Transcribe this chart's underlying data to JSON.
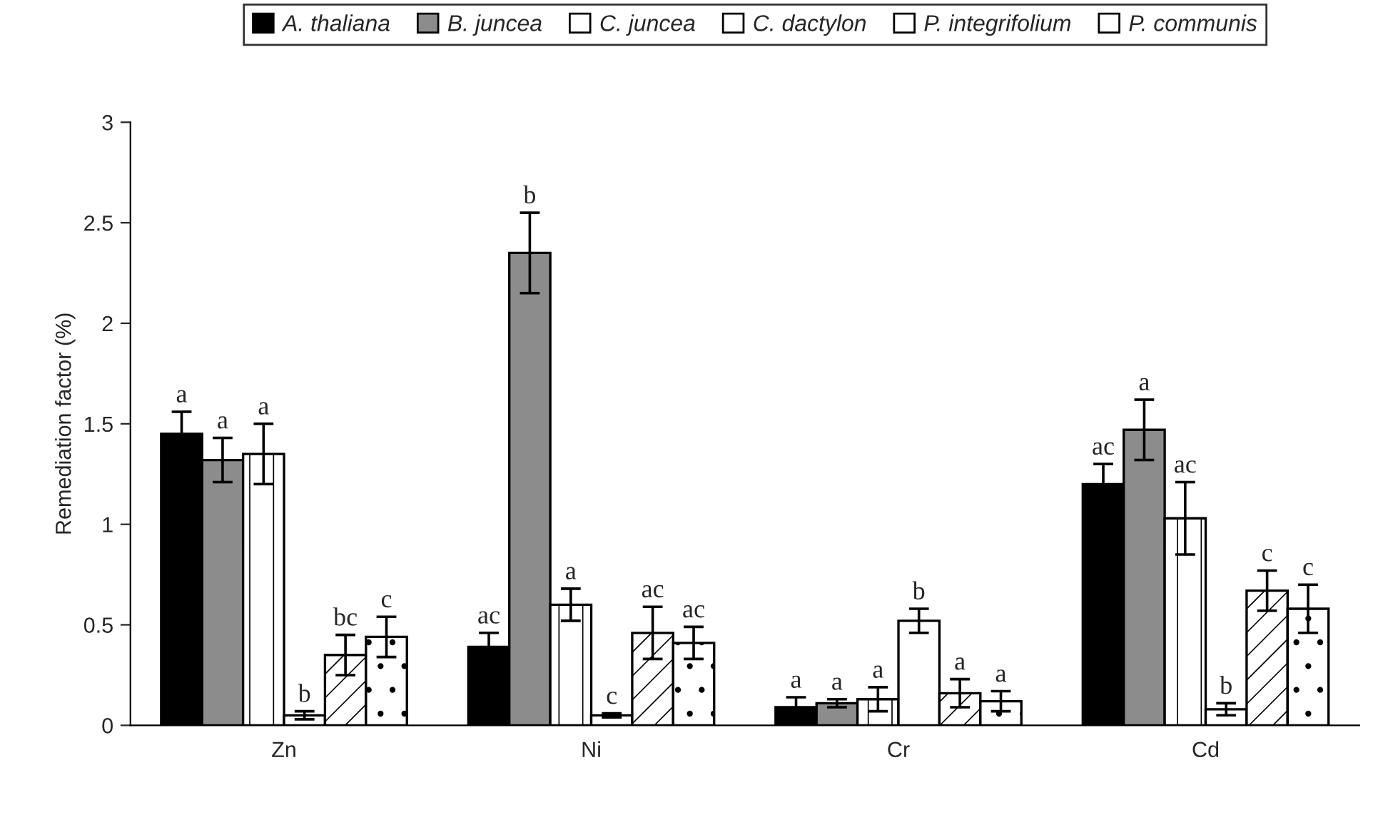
{
  "chart_data": {
    "type": "bar",
    "ylabel": "Remediation factor (%)",
    "categories": [
      "Zn",
      "Ni",
      "Cr",
      "Cd"
    ],
    "series": [
      {
        "name": "A. thaliana",
        "color": "#000000",
        "values": [
          1.45,
          0.39,
          0.09,
          1.2
        ],
        "errors": [
          0.11,
          0.07,
          0.05,
          0.1
        ],
        "value_labels": [
          "a",
          "ac",
          "a",
          "ac"
        ]
      },
      {
        "name": "B. juncea",
        "color": "#8c8c8c",
        "values": [
          1.32,
          2.35,
          0.11,
          1.47
        ],
        "errors": [
          0.11,
          0.2,
          0.02,
          0.15
        ],
        "value_labels": [
          "a",
          "b",
          "a",
          "a"
        ]
      },
      {
        "name": "C. juncea",
        "color": "#ffffff",
        "values": [
          1.35,
          0.6,
          0.13,
          1.03
        ],
        "errors": [
          0.15,
          0.08,
          0.06,
          0.18
        ],
        "value_labels": [
          "a",
          "a",
          "a",
          "ac"
        ]
      },
      {
        "name": "C. dactylon",
        "color": "#ffffff",
        "values": [
          0.05,
          0.05,
          0.52,
          0.08
        ],
        "errors": [
          0.02,
          0.01,
          0.06,
          0.03
        ],
        "value_labels": [
          "b",
          "c",
          "b",
          "b"
        ]
      },
      {
        "name": "P. integrifolium",
        "color": "#ffffff",
        "values": [
          0.35,
          0.46,
          0.16,
          0.67
        ],
        "errors": [
          0.1,
          0.13,
          0.07,
          0.1
        ],
        "value_labels": [
          "bc",
          "ac",
          "a",
          "c"
        ]
      },
      {
        "name": "P. communis",
        "color": "#ffffff",
        "values": [
          0.44,
          0.41,
          0.12,
          0.58
        ],
        "errors": [
          0.1,
          0.08,
          0.05,
          0.12
        ],
        "value_labels": [
          "c",
          "ac",
          "a",
          "c"
        ]
      }
    ],
    "ylim": [
      0,
      3
    ],
    "yticks": [
      0,
      0.5,
      1,
      1.5,
      2,
      2.5,
      3
    ],
    "grid": false,
    "legend": "top"
  }
}
